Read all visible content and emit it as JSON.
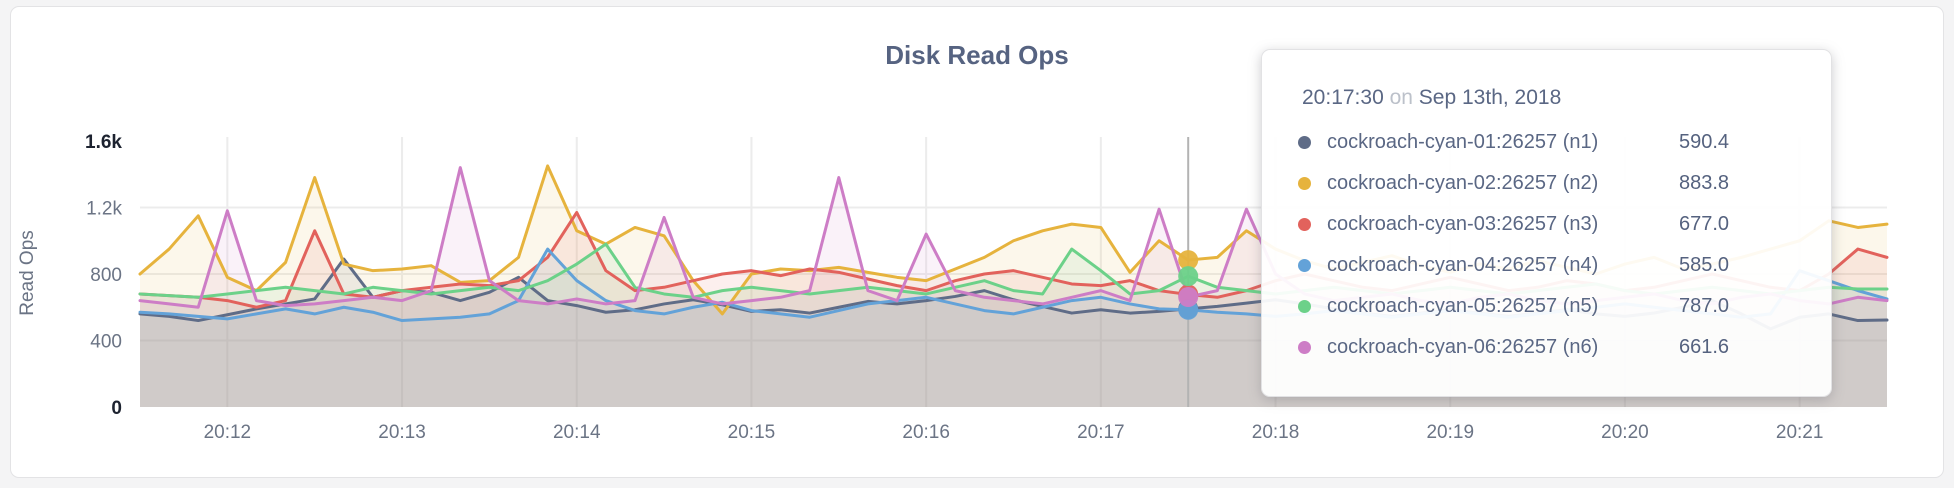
{
  "header": {
    "title": "Disk Read Ops"
  },
  "colors": {
    "grid": "#ececec",
    "hover_line": "#b3b3b3",
    "tick_normal": "#6b7485",
    "tick_strong": "#1d2330",
    "title": "#566381"
  },
  "tooltip": {
    "time": "20:17:30",
    "connector": "on",
    "date": "Sep 13th, 2018",
    "values": [
      "590.4",
      "883.8",
      "677.0",
      "585.0",
      "787.0",
      "661.6"
    ]
  },
  "chart_data": {
    "type": "line",
    "title": "Disk Read Ops",
    "xlabel": "",
    "ylabel": "Read Ops",
    "ylim": [
      0,
      1600
    ],
    "grid": true,
    "x_start": "20:11:30",
    "x_step_seconds": 10,
    "x_tick_labels": [
      {
        "index": 3,
        "label": "20:12"
      },
      {
        "index": 9,
        "label": "20:13"
      },
      {
        "index": 15,
        "label": "20:14"
      },
      {
        "index": 21,
        "label": "20:15"
      },
      {
        "index": 27,
        "label": "20:16"
      },
      {
        "index": 33,
        "label": "20:17"
      },
      {
        "index": 39,
        "label": "20:18"
      },
      {
        "index": 45,
        "label": "20:19"
      },
      {
        "index": 51,
        "label": "20:20"
      },
      {
        "index": 57,
        "label": "20:21"
      }
    ],
    "y_ticks": [
      {
        "value": 0,
        "label": "0",
        "strong": true,
        "gridline": false
      },
      {
        "value": 400,
        "label": "400",
        "strong": false,
        "gridline": true
      },
      {
        "value": 800,
        "label": "800",
        "strong": false,
        "gridline": true
      },
      {
        "value": 1200,
        "label": "1.2k",
        "strong": false,
        "gridline": true
      },
      {
        "value": 1600,
        "label": "1.6k",
        "strong": true,
        "gridline": false
      }
    ],
    "hover": {
      "index": 36,
      "time": "20:17:30",
      "date": "Sep 13th, 2018"
    },
    "series": [
      {
        "name": "cockroach-cyan-01:26257 (n1)",
        "node": "n1",
        "color": "#5f6c87",
        "values": [
          560,
          545,
          520,
          555,
          590,
          620,
          650,
          890,
          660,
          700,
          690,
          640,
          690,
          780,
          640,
          610,
          570,
          585,
          620,
          645,
          615,
          575,
          585,
          565,
          600,
          635,
          620,
          640,
          665,
          700,
          645,
          605,
          565,
          585,
          565,
          575,
          590.4,
          605,
          625,
          645,
          620,
          590,
          565,
          545,
          565,
          585,
          565,
          545,
          565,
          585,
          560,
          545,
          565,
          600,
          640,
          560,
          470,
          540,
          560,
          520,
          523
        ]
      },
      {
        "name": "cockroach-cyan-02:26257 (n2)",
        "node": "n2",
        "color": "#e6b33d",
        "values": [
          800,
          950,
          1150,
          780,
          700,
          870,
          1380,
          860,
          820,
          830,
          850,
          750,
          760,
          900,
          1450,
          1060,
          980,
          1080,
          1030,
          760,
          560,
          800,
          830,
          820,
          840,
          810,
          780,
          760,
          830,
          900,
          1000,
          1060,
          1100,
          1080,
          810,
          1000,
          883.8,
          900,
          1060,
          950,
          880,
          830,
          870,
          910,
          850,
          810,
          860,
          830,
          880,
          840,
          800,
          860,
          900,
          830,
          860,
          900,
          950,
          1000,
          1120,
          1080,
          1100
        ]
      },
      {
        "name": "cockroach-cyan-03:26257 (n3)",
        "node": "n3",
        "color": "#e2625c",
        "values": [
          680,
          670,
          660,
          640,
          600,
          640,
          1060,
          680,
          660,
          700,
          720,
          740,
          730,
          760,
          900,
          1170,
          820,
          700,
          720,
          760,
          800,
          820,
          790,
          830,
          810,
          770,
          730,
          700,
          760,
          800,
          820,
          780,
          740,
          730,
          760,
          700,
          677,
          660,
          700,
          760,
          800,
          760,
          720,
          700,
          740,
          780,
          740,
          700,
          720,
          760,
          740,
          700,
          720,
          760,
          800,
          760,
          720,
          700,
          800,
          950,
          900
        ]
      },
      {
        "name": "cockroach-cyan-04:26257 (n4)",
        "node": "n4",
        "color": "#63a2d8",
        "values": [
          570,
          560,
          545,
          530,
          560,
          590,
          560,
          600,
          570,
          520,
          530,
          540,
          560,
          640,
          950,
          760,
          640,
          580,
          560,
          600,
          630,
          580,
          560,
          540,
          580,
          620,
          640,
          660,
          620,
          580,
          560,
          600,
          640,
          660,
          620,
          590,
          585,
          570,
          560,
          545,
          560,
          580,
          560,
          540,
          560,
          580,
          560,
          540,
          560,
          580,
          600,
          620,
          600,
          580,
          560,
          540,
          560,
          820,
          760,
          700,
          650
        ]
      },
      {
        "name": "cockroach-cyan-05:26257 (n5)",
        "node": "n5",
        "color": "#6cd189",
        "values": [
          680,
          670,
          660,
          680,
          700,
          720,
          700,
          680,
          720,
          700,
          680,
          700,
          720,
          700,
          760,
          860,
          980,
          720,
          680,
          660,
          700,
          720,
          700,
          680,
          700,
          720,
          700,
          680,
          720,
          760,
          700,
          680,
          950,
          820,
          680,
          700,
          787,
          720,
          700,
          680,
          700,
          720,
          700,
          680,
          700,
          720,
          700,
          680,
          700,
          720,
          740,
          700,
          680,
          700,
          720,
          700,
          680,
          700,
          720,
          710,
          710
        ]
      },
      {
        "name": "cockroach-cyan-06:26257 (n6)",
        "node": "n6",
        "color": "#cd7dc6",
        "values": [
          640,
          620,
          600,
          1180,
          640,
          610,
          620,
          640,
          660,
          640,
          700,
          1440,
          760,
          640,
          620,
          650,
          620,
          640,
          1140,
          660,
          620,
          640,
          660,
          700,
          1380,
          700,
          640,
          1040,
          700,
          660,
          640,
          620,
          660,
          700,
          640,
          1190,
          661.6,
          700,
          1190,
          800,
          680,
          640,
          660,
          680,
          640,
          620,
          660,
          680,
          640,
          620,
          640,
          660,
          680,
          640,
          620,
          660,
          680,
          640,
          620,
          660,
          640
        ]
      }
    ]
  }
}
